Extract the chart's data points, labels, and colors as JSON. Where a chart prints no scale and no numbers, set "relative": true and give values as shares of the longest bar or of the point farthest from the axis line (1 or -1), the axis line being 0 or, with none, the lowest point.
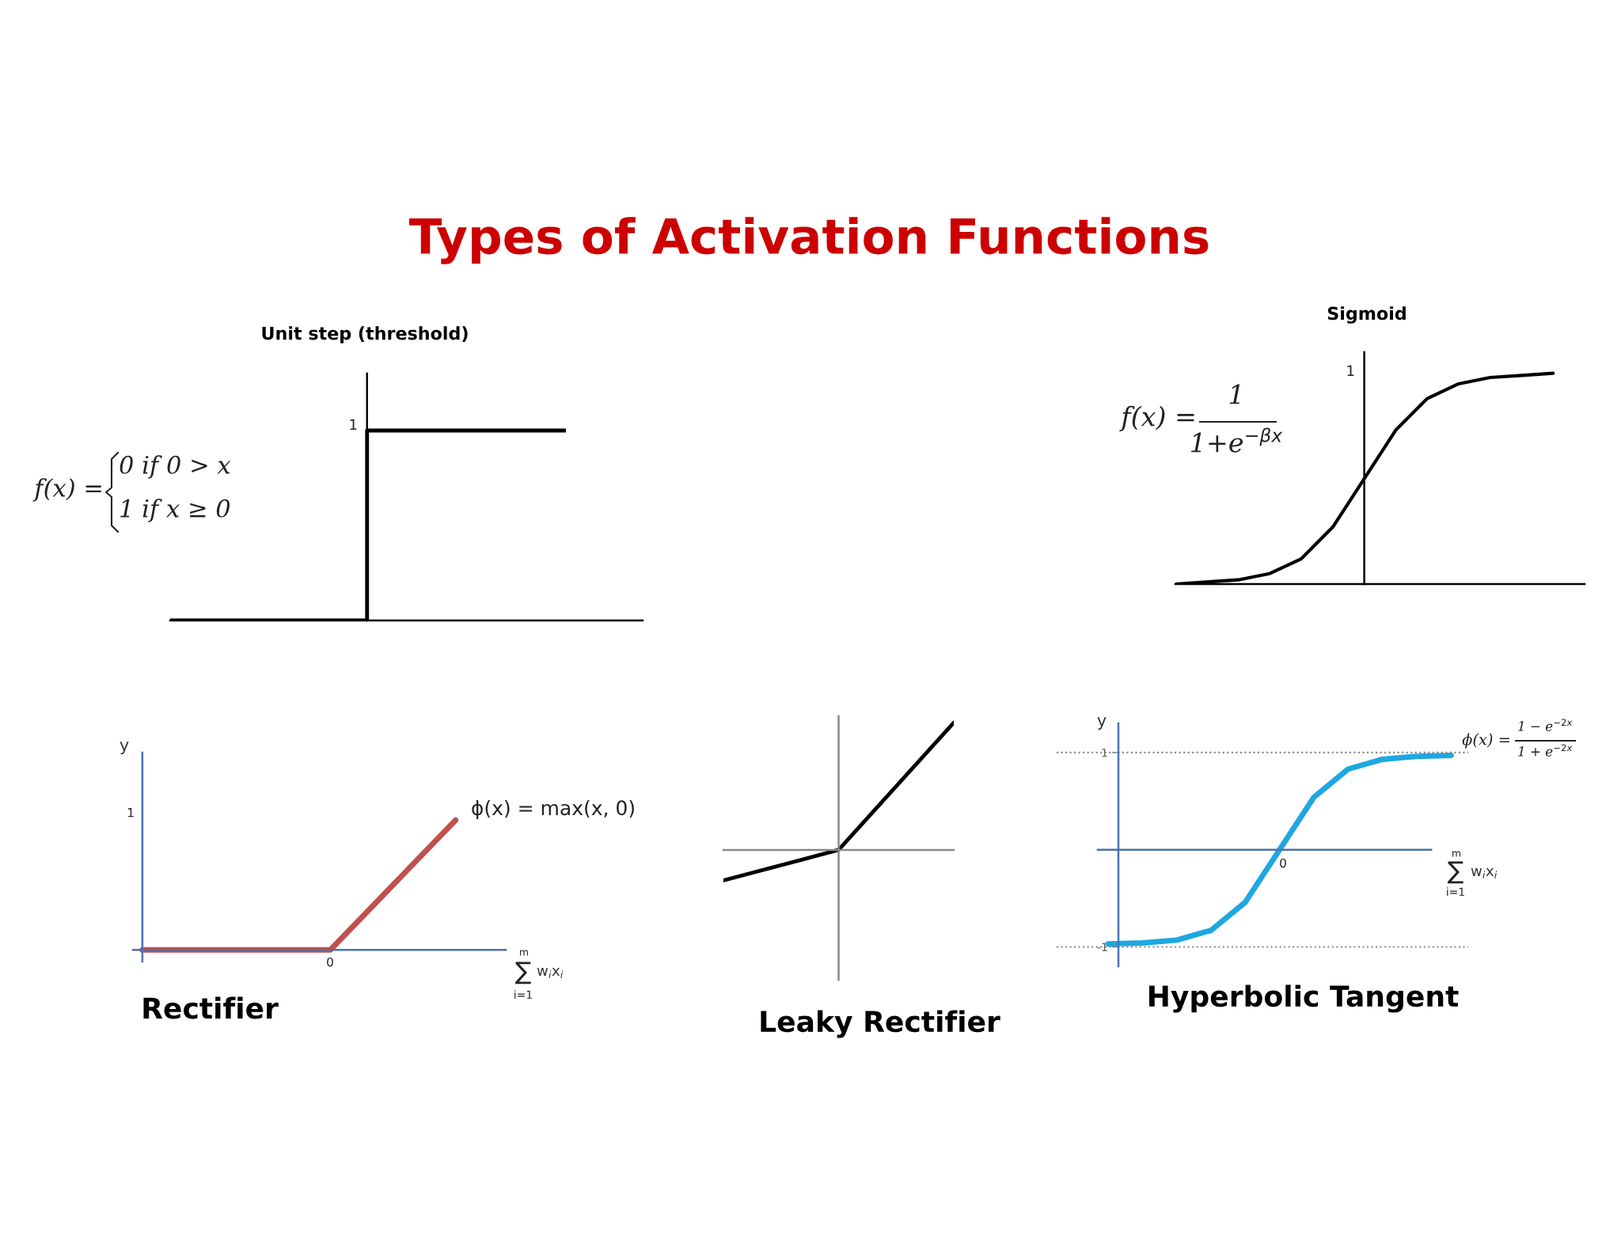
{
  "chart_data": [
    {
      "type": "other",
      "title": "Types of Activation Functions"
    },
    {
      "type": "step",
      "title": "Unit step (threshold)",
      "relative": true,
      "categories": [
        null,
        null,
        null
      ],
      "series": [
        {
          "color": "#000000",
          "values": [
            0,
            1,
            1
          ]
        }
      ],
      "annotations": [
        "f(x) =",
        "0 if 0 > x",
        "1 if x ≥ 0",
        "1"
      ]
    },
    {
      "type": "line",
      "title": "Sigmoid",
      "relative": true,
      "categories": [
        null,
        null,
        null,
        null,
        null,
        null,
        null,
        null,
        null,
        null,
        null,
        null,
        null
      ],
      "series": [
        {
          "color": "#000000",
          "values": [
            0.0,
            0.01,
            0.02,
            0.05,
            0.12,
            0.27,
            0.5,
            0.73,
            0.88,
            0.95,
            0.98,
            0.99,
            1.0
          ]
        }
      ],
      "annotations": [
        "f(x) =",
        "1",
        "1+e$^{−βx}$",
        "1"
      ]
    },
    {
      "type": "line",
      "title": "Rectifier",
      "relative": true,
      "categories": [
        null,
        null,
        null,
        null,
        null,
        null
      ],
      "series": [
        {
          "color": "#c0504d",
          "values": [
            0,
            0,
            0,
            0,
            0.5,
            1
          ]
        }
      ],
      "xlabel": "w$_{i}$x$_{i}$",
      "ylabel": "y",
      "annotations": [
        "1",
        "0",
        "ϕ(x) = max(x, 0)",
        "m",
        "∑",
        "i=1"
      ]
    },
    {
      "type": "line",
      "title": "Leaky Rectifier",
      "relative": true,
      "categories": [
        null,
        null,
        null
      ],
      "series": [
        {
          "color": "#000000",
          "values": [
            -0.24,
            0,
            1
          ]
        }
      ]
    },
    {
      "type": "line",
      "title": "Hyperbolic Tangent",
      "categories": [
        null,
        null,
        null,
        null,
        null,
        null,
        null,
        null,
        null,
        null,
        null
      ],
      "series": [
        {
          "color": "#1ea7e1",
          "values": [
            -0.97,
            -0.96,
            -0.93,
            -0.83,
            -0.54,
            0,
            0.54,
            0.83,
            0.93,
            0.96,
            0.97
          ]
        }
      ],
      "ylim": [
        -1.2,
        1.3
      ],
      "yticks": [
        -1,
        1
      ],
      "xlabel": "w$_{i}$x$_{i}$",
      "ylabel": "y",
      "ref_lines": [
        {
          "axis": "y",
          "value": 0,
          "color": "#4a72b0",
          "line_style": "solid"
        },
        {
          "axis": "y",
          "value": 1,
          "color": "#888888",
          "line_style": "dotted"
        },
        {
          "axis": "y",
          "value": -1,
          "color": "#888888",
          "line_style": "dotted"
        }
      ],
      "annotations": [
        "0",
        "ϕ(x) =",
        "1 − e$^{−2x}$",
        "1 + e$^{−2x}$",
        "m",
        "∑",
        "i=1"
      ]
    }
  ]
}
